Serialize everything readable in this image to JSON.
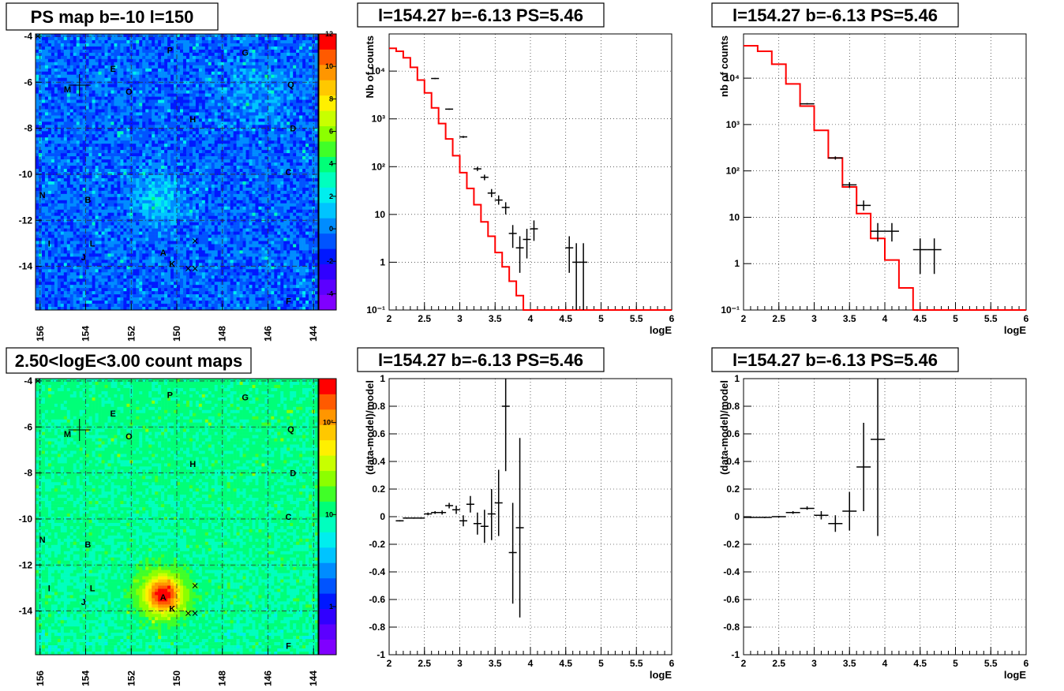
{
  "chart_data": [
    {
      "id": "ps-map",
      "type": "heatmap",
      "title": "PS map b=-10 l=150",
      "x_ticks": [
        "156",
        "154",
        "152",
        "150",
        "148",
        "146",
        "144"
      ],
      "x_tick_values": [
        156,
        154,
        152,
        150,
        148,
        146,
        144
      ],
      "y_ticks": [
        "-4",
        "-6",
        "-8",
        "-10",
        "-12",
        "-14"
      ],
      "y_tick_values": [
        -4,
        -6,
        -8,
        -10,
        -12,
        -14
      ],
      "xlim": [
        156.2,
        143.8
      ],
      "ylim": [
        -15.9,
        -3.9
      ],
      "colorbar": {
        "scale": "linear",
        "min": -5,
        "max": 12,
        "ticks": [
          "12",
          "10",
          "8",
          "6",
          "4",
          "2",
          "0",
          "-2",
          "-4"
        ],
        "tick_values": [
          12,
          10,
          8,
          6,
          4,
          2,
          0,
          -2,
          -4
        ]
      },
      "grid": true
    },
    {
      "id": "spectrum-1",
      "type": "line",
      "title": "l=154.27 b=-6.13 PS=5.46",
      "xlabel": "logE",
      "ylabel": "Nb of counts",
      "yscale": "log",
      "xlim": [
        2,
        6
      ],
      "ylim": [
        0.1,
        60000
      ],
      "x_ticks": [
        "2",
        "2.5",
        "3",
        "3.5",
        "4",
        "4.5",
        "5",
        "5.5",
        "6"
      ],
      "y_ticks": [
        "10⁻¹",
        "1",
        "10",
        "10²",
        "10³",
        "10⁴"
      ],
      "y_tick_values": [
        0.1,
        1,
        10,
        100,
        1000,
        10000
      ],
      "grid": true,
      "model_edges": [
        2.0,
        2.1,
        2.2,
        2.3,
        2.4,
        2.5,
        2.6,
        2.7,
        2.8,
        2.9,
        3.0,
        3.1,
        3.2,
        3.3,
        3.4,
        3.5,
        3.6,
        3.7,
        3.8,
        3.9,
        4.0,
        4.1,
        4.2,
        4.3,
        4.4,
        4.5,
        4.6,
        4.7,
        4.8,
        6.0
      ],
      "model_values": [
        30000,
        26000,
        19000,
        12000,
        6500,
        3500,
        1700,
        800,
        380,
        170,
        75,
        35,
        16,
        7,
        3.5,
        1.6,
        0.8,
        0.4,
        0.2,
        0.1,
        0.1,
        0.1,
        0.1,
        0.1,
        0.1,
        0.1,
        0.1,
        0.1,
        0.1
      ],
      "data": [
        {
          "x": 2.65,
          "y": 7000,
          "lo": 6800,
          "hi": 7200
        },
        {
          "x": 2.85,
          "y": 1600,
          "lo": 1550,
          "hi": 1650
        },
        {
          "x": 3.05,
          "y": 420,
          "lo": 400,
          "hi": 440
        },
        {
          "x": 3.25,
          "y": 90,
          "lo": 81,
          "hi": 99
        },
        {
          "x": 3.35,
          "y": 60,
          "lo": 52,
          "hi": 68
        },
        {
          "x": 3.45,
          "y": 28,
          "lo": 23,
          "hi": 34
        },
        {
          "x": 3.55,
          "y": 20,
          "lo": 16,
          "hi": 25
        },
        {
          "x": 3.65,
          "y": 14,
          "lo": 10,
          "hi": 18
        },
        {
          "x": 3.75,
          "y": 4,
          "lo": 2,
          "hi": 6
        },
        {
          "x": 3.85,
          "y": 2,
          "lo": 0.6,
          "hi": 3.5
        },
        {
          "x": 3.95,
          "y": 3,
          "lo": 1.2,
          "hi": 5
        },
        {
          "x": 4.05,
          "y": 5,
          "lo": 2.8,
          "hi": 7.5
        },
        {
          "x": 4.55,
          "y": 2,
          "lo": 0.6,
          "hi": 3.5
        },
        {
          "x": 4.65,
          "y": 1,
          "lo": 0.1,
          "hi": 2.5
        },
        {
          "x": 4.75,
          "y": 1,
          "lo": 0.1,
          "hi": 2.5
        }
      ]
    },
    {
      "id": "spectrum-2",
      "type": "line",
      "title": "l=154.27 b=-6.13 PS=5.46",
      "xlabel": "logE",
      "ylabel": "nb of counts",
      "yscale": "log",
      "xlim": [
        2,
        6
      ],
      "ylim": [
        0.1,
        90000
      ],
      "x_ticks": [
        "2",
        "2.5",
        "3",
        "3.5",
        "4",
        "4.5",
        "5",
        "5.5",
        "6"
      ],
      "y_ticks": [
        "10⁻¹",
        "1",
        "10",
        "10²",
        "10³",
        "10⁴"
      ],
      "y_tick_values": [
        0.1,
        1,
        10,
        100,
        1000,
        10000
      ],
      "grid": true,
      "model_edges": [
        2.0,
        2.2,
        2.4,
        2.6,
        2.8,
        3.0,
        3.2,
        3.4,
        3.6,
        3.8,
        4.0,
        4.2,
        4.4,
        6.0
      ],
      "model_values": [
        50000,
        38000,
        20000,
        7500,
        2500,
        750,
        190,
        45,
        12,
        3.5,
        1.2,
        0.3,
        0.1
      ],
      "data": [
        {
          "x": 2.9,
          "y": 2800,
          "lo": 2700,
          "hi": 2900
        },
        {
          "x": 3.3,
          "y": 190,
          "lo": 175,
          "hi": 205
        },
        {
          "x": 3.5,
          "y": 50,
          "lo": 43,
          "hi": 57
        },
        {
          "x": 3.7,
          "y": 18,
          "lo": 14,
          "hi": 23
        },
        {
          "x": 3.9,
          "y": 5,
          "lo": 3,
          "hi": 7.5
        },
        {
          "x": 4.1,
          "y": 5,
          "lo": 3,
          "hi": 7.5
        },
        {
          "x": 4.5,
          "y": 2,
          "lo": 0.6,
          "hi": 3.5
        },
        {
          "x": 4.7,
          "y": 2,
          "lo": 0.6,
          "hi": 3.5
        }
      ]
    },
    {
      "id": "count-map",
      "type": "heatmap",
      "title": "2.50<logE<3.00 count maps",
      "x_ticks": [
        "156",
        "154",
        "152",
        "150",
        "148",
        "146",
        "144"
      ],
      "x_tick_values": [
        156,
        154,
        152,
        150,
        148,
        146,
        144
      ],
      "y_ticks": [
        "-4",
        "-6",
        "-8",
        "-10",
        "-12",
        "-14"
      ],
      "y_tick_values": [
        -4,
        -6,
        -8,
        -10,
        -12,
        -14
      ],
      "xlim": [
        156.2,
        143.8
      ],
      "ylim": [
        -15.9,
        -3.9
      ],
      "colorbar": {
        "scale": "log",
        "min": 0.3,
        "max": 300,
        "ticks": [
          "10²",
          "10",
          "1"
        ],
        "tick_values": [
          100,
          10,
          1
        ]
      },
      "grid": true
    },
    {
      "id": "residual-1",
      "type": "scatter",
      "title": "l=154.27 b=-6.13 PS=5.46",
      "xlabel": "logE",
      "ylabel": "(data-model)/model",
      "xlim": [
        2,
        6
      ],
      "ylim": [
        -1,
        1
      ],
      "x_ticks": [
        "2",
        "2.5",
        "3",
        "3.5",
        "4",
        "4.5",
        "5",
        "5.5",
        "6"
      ],
      "y_ticks": [
        "1",
        "0.8",
        "0.6",
        "0.4",
        "0.2",
        "0",
        "-0.2",
        "-0.4",
        "-0.6",
        "-0.8",
        "-1"
      ],
      "y_tick_values": [
        1,
        0.8,
        0.6,
        0.4,
        0.2,
        0,
        -0.2,
        -0.4,
        -0.6,
        -0.8,
        -1
      ],
      "grid": true,
      "data": [
        {
          "x": 2.15,
          "y": -0.03,
          "lo": -0.035,
          "hi": -0.025
        },
        {
          "x": 2.25,
          "y": -0.01,
          "lo": -0.015,
          "hi": -0.005
        },
        {
          "x": 2.35,
          "y": -0.01,
          "lo": -0.015,
          "hi": -0.005
        },
        {
          "x": 2.45,
          "y": -0.01,
          "lo": -0.015,
          "hi": -0.005
        },
        {
          "x": 2.55,
          "y": 0.02,
          "lo": 0.01,
          "hi": 0.03
        },
        {
          "x": 2.65,
          "y": 0.03,
          "lo": 0.02,
          "hi": 0.04
        },
        {
          "x": 2.75,
          "y": 0.03,
          "lo": 0.015,
          "hi": 0.045
        },
        {
          "x": 2.85,
          "y": 0.08,
          "lo": 0.06,
          "hi": 0.1
        },
        {
          "x": 2.95,
          "y": 0.05,
          "lo": 0.02,
          "hi": 0.08
        },
        {
          "x": 3.05,
          "y": -0.03,
          "lo": -0.07,
          "hi": 0.01
        },
        {
          "x": 3.15,
          "y": 0.09,
          "lo": 0.03,
          "hi": 0.15
        },
        {
          "x": 3.25,
          "y": -0.05,
          "lo": -0.13,
          "hi": 0.03
        },
        {
          "x": 3.35,
          "y": -0.07,
          "lo": -0.19,
          "hi": 0.05
        },
        {
          "x": 3.45,
          "y": 0.02,
          "lo": -0.17,
          "hi": 0.2
        },
        {
          "x": 3.55,
          "y": 0.1,
          "lo": -0.14,
          "hi": 0.34
        },
        {
          "x": 3.65,
          "y": 0.8,
          "lo": 0.33,
          "hi": 1.0
        },
        {
          "x": 3.75,
          "y": -0.26,
          "lo": -0.63,
          "hi": 0.1
        },
        {
          "x": 3.85,
          "y": -0.08,
          "lo": -0.73,
          "hi": 0.57
        }
      ]
    },
    {
      "id": "residual-2",
      "type": "scatter",
      "title": "l=154.27 b=-6.13 PS=5.46",
      "xlabel": "logE",
      "ylabel": "(data-model)/model",
      "xlim": [
        2,
        6
      ],
      "ylim": [
        -1,
        1
      ],
      "x_ticks": [
        "2",
        "2.5",
        "3",
        "3.5",
        "4",
        "4.5",
        "5",
        "5.5",
        "6"
      ],
      "y_ticks": [
        "1",
        "0.8",
        "0.6",
        "0.4",
        "0.2",
        "0",
        "-0.2",
        "-0.4",
        "-0.6",
        "-0.8",
        "-1"
      ],
      "y_tick_values": [
        1,
        0.8,
        0.6,
        0.4,
        0.2,
        0,
        -0.2,
        -0.4,
        -0.6,
        -0.8,
        -1
      ],
      "grid": true,
      "data": [
        {
          "x": 2.1,
          "y": -0.005,
          "lo": -0.01,
          "hi": 0.0
        },
        {
          "x": 2.3,
          "y": -0.005,
          "lo": -0.01,
          "hi": 0.0
        },
        {
          "x": 2.5,
          "y": 0.0,
          "lo": -0.005,
          "hi": 0.005
        },
        {
          "x": 2.7,
          "y": 0.03,
          "lo": 0.02,
          "hi": 0.04
        },
        {
          "x": 2.9,
          "y": 0.06,
          "lo": 0.05,
          "hi": 0.075
        },
        {
          "x": 3.1,
          "y": 0.01,
          "lo": -0.02,
          "hi": 0.04
        },
        {
          "x": 3.3,
          "y": -0.05,
          "lo": -0.11,
          "hi": 0.01
        },
        {
          "x": 3.5,
          "y": 0.04,
          "lo": -0.1,
          "hi": 0.18
        },
        {
          "x": 3.7,
          "y": 0.36,
          "lo": 0.04,
          "hi": 0.68
        },
        {
          "x": 3.9,
          "y": 0.56,
          "lo": -0.14,
          "hi": 1.0
        }
      ]
    }
  ],
  "map_sources": [
    {
      "label": "P",
      "l": 150.3,
      "b": -4.6
    },
    {
      "label": "G",
      "l": 147.0,
      "b": -4.7
    },
    {
      "label": "E",
      "l": 152.8,
      "b": -5.4
    },
    {
      "label": "M",
      "l": 154.8,
      "b": -6.3
    },
    {
      "label": "O",
      "l": 152.1,
      "b": -6.4
    },
    {
      "label": "Q",
      "l": 145.0,
      "b": -6.1
    },
    {
      "label": "H",
      "l": 149.3,
      "b": -7.6
    },
    {
      "label": "D",
      "l": 144.9,
      "b": -8.0
    },
    {
      "label": "C",
      "l": 145.1,
      "b": -9.9
    },
    {
      "label": "N",
      "l": 155.9,
      "b": -10.9
    },
    {
      "label": "B",
      "l": 153.9,
      "b": -11.1
    },
    {
      "label": "I",
      "l": 155.6,
      "b": -13.0
    },
    {
      "label": "L",
      "l": 153.7,
      "b": -13.0
    },
    {
      "label": "A",
      "l": 150.6,
      "b": -13.4
    },
    {
      "label": "J",
      "l": 154.1,
      "b": -13.6
    },
    {
      "label": "K",
      "l": 150.2,
      "b": -13.9
    },
    {
      "label": "F",
      "l": 145.1,
      "b": -15.5
    }
  ],
  "map_markers": [
    {
      "l": 149.2,
      "b": -12.9
    },
    {
      "l": 149.5,
      "b": -14.1
    },
    {
      "l": 149.2,
      "b": -14.1
    },
    {
      "l": 156.1,
      "b": -4.0
    }
  ],
  "map_cross": {
    "l": 154.27,
    "b": -6.13
  }
}
